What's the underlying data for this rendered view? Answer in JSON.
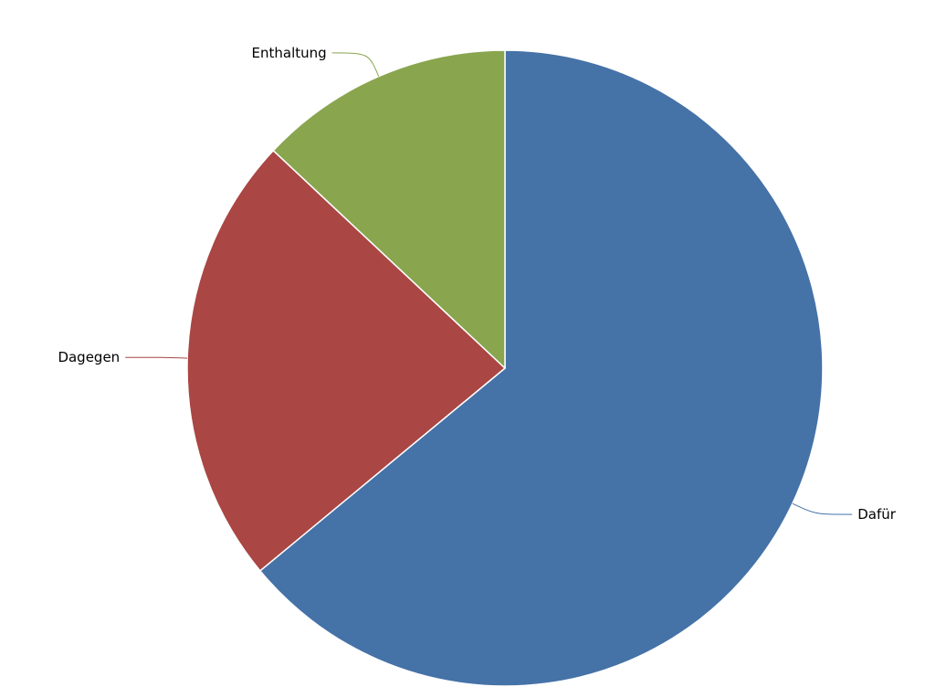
{
  "chart_data": {
    "type": "pie",
    "title": "",
    "legend": "none",
    "slices": [
      {
        "label": "Dafür",
        "value": 64,
        "color": "#4572a7"
      },
      {
        "label": "Dagegen",
        "value": 23,
        "color": "#aa4643"
      },
      {
        "label": "Enthaltung",
        "value": 13,
        "color": "#89a54e"
      }
    ]
  }
}
